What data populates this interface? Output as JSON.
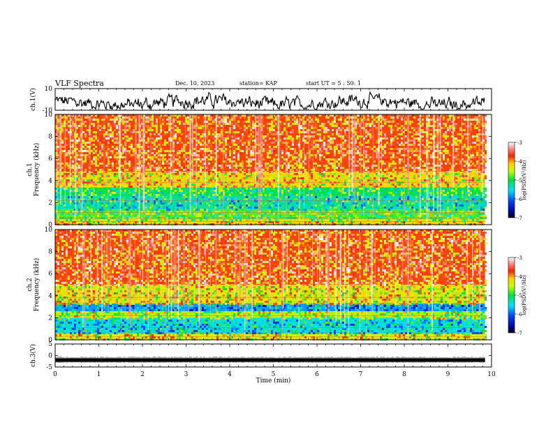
{
  "header": {
    "title": "VLF Spectra",
    "date": "Dec. 10, 2023",
    "station": "station= KAP",
    "start_time": "start UT =  5 : 50: 1"
  },
  "chart_data": [
    {
      "type": "line",
      "panel": "ch1-waveform",
      "ylabel": "ch.1(V)",
      "yticks": [
        "10",
        "-10"
      ],
      "ylim": [
        -10,
        10
      ],
      "xlim": [
        0,
        10
      ],
      "x_data_end": 9.85,
      "trace": "noisy waveform, roughly centered near 0 V",
      "color": "#000000"
    },
    {
      "type": "heatmap",
      "panel": "ch1-spectrogram",
      "ylabel": "ch.1\nFrequency (kHz)",
      "yticks": [
        "0",
        "2",
        "4",
        "6",
        "8",
        "10"
      ],
      "ylim": [
        0,
        10
      ],
      "xlim": [
        0,
        10
      ],
      "x_data_end": 9.85,
      "colorbar": {
        "label": "log(PSD)(V²/Hz)",
        "ticks": [
          "-3",
          "-4",
          "-5",
          "-6",
          "-7"
        ],
        "range": [
          -7,
          -3
        ],
        "colormap": "jet"
      },
      "bands_khz": [
        {
          "from": 0.0,
          "to": 0.5,
          "level": -4.2
        },
        {
          "from": 0.5,
          "to": 1.4,
          "level": -4.8
        },
        {
          "from": 1.4,
          "to": 2.6,
          "level": -5.3
        },
        {
          "from": 2.6,
          "to": 3.4,
          "level": -5.0
        },
        {
          "from": 3.4,
          "to": 4.8,
          "level": -4.2
        },
        {
          "from": 4.8,
          "to": 10.0,
          "level": -3.8
        }
      ]
    },
    {
      "type": "heatmap",
      "panel": "ch2-spectrogram",
      "ylabel": "ch.2\nFrequency (kHz)",
      "yticks": [
        "0",
        "2",
        "4",
        "6",
        "8",
        "10"
      ],
      "ylim": [
        0,
        10
      ],
      "xlim": [
        0,
        10
      ],
      "x_data_end": 9.85,
      "colorbar": {
        "label": "log(PSD)(V²/Hz)",
        "ticks": [
          "-3",
          "-4",
          "-5",
          "-6",
          "-7"
        ],
        "range": [
          -7,
          -3
        ],
        "colormap": "jet"
      },
      "bands_khz": [
        {
          "from": 0.0,
          "to": 0.6,
          "level": -4.4
        },
        {
          "from": 0.6,
          "to": 2.0,
          "level": -5.5
        },
        {
          "from": 2.0,
          "to": 2.6,
          "level": -4.6
        },
        {
          "from": 2.6,
          "to": 3.3,
          "level": -5.8
        },
        {
          "from": 3.3,
          "to": 5.0,
          "level": -4.3
        },
        {
          "from": 5.0,
          "to": 10.0,
          "level": -3.8
        }
      ]
    },
    {
      "type": "line",
      "panel": "ch3-waveform",
      "ylabel": "ch.3(V)",
      "yticks": [
        "5",
        "0",
        "-5"
      ],
      "ylim": [
        -5,
        5
      ],
      "xlim": [
        0,
        10
      ],
      "x_data_end": 9.85,
      "trace": "dense flat band near -2 V",
      "color": "#000000",
      "xlabel": "Time (min)",
      "xticks": [
        "0",
        "1",
        "2",
        "3",
        "4",
        "5",
        "6",
        "7",
        "8",
        "9",
        "10"
      ]
    }
  ]
}
